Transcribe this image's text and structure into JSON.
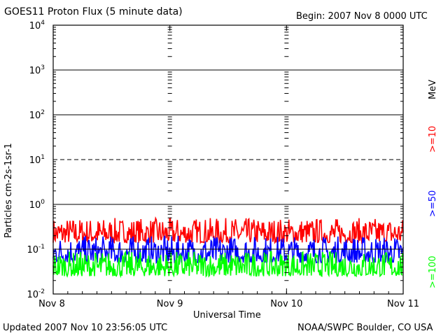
{
  "header": {
    "title": "GOES11 Proton Flux (5 minute data)",
    "begin": "Begin: 2007 Nov 8 0000 UTC"
  },
  "footer": {
    "updated": "Updated 2007 Nov 10 23:56:05 UTC",
    "source": "NOAA/SWPC Boulder, CO USA"
  },
  "chart_data": {
    "type": "line",
    "title": "GOES11 Proton Flux (5 minute data)",
    "xlabel": "Universal Time",
    "ylabel": "Particles cm-2s-1sr-1",
    "yscale": "log",
    "ylim": [
      0.01,
      10000
    ],
    "y_ticks": [
      {
        "base": "10",
        "exp": "-2"
      },
      {
        "base": "10",
        "exp": "-1"
      },
      {
        "base": "10",
        "exp": "0"
      },
      {
        "base": "10",
        "exp": "1"
      },
      {
        "base": "10",
        "exp": "2"
      },
      {
        "base": "10",
        "exp": "3"
      },
      {
        "base": "10",
        "exp": "4"
      }
    ],
    "x_ticks": [
      "Nov 8",
      "Nov 9",
      "Nov 10",
      "Nov 11"
    ],
    "xlim": [
      "2007-11-08T00:00",
      "2007-11-11T00:00"
    ],
    "grid": "horizontal at decades, dashed at 10^1",
    "unit_label": "MeV",
    "series": [
      {
        "name": ">=10",
        "color": "#ff0000",
        "typical_range": [
          0.14,
          0.5
        ]
      },
      {
        "name": ">=50",
        "color": "#0000ff",
        "typical_range": [
          0.05,
          0.2
        ]
      },
      {
        "name": ">=100",
        "color": "#00ff00",
        "typical_range": [
          0.025,
          0.09
        ]
      }
    ]
  }
}
